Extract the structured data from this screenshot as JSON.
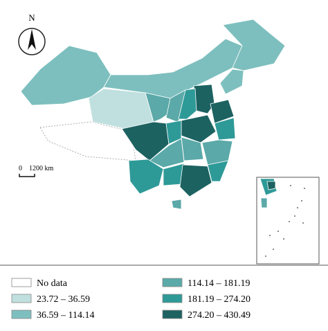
{
  "compass": {
    "label": "N"
  },
  "scale_bar": {
    "start": "0",
    "end": "1200 km"
  },
  "legend": {
    "items": [
      {
        "label": "No data",
        "color": "#ffffff"
      },
      {
        "label": "23.72 – 36.59",
        "color": "#c0e0df"
      },
      {
        "label": "36.59 – 114.14",
        "color": "#7dbfbe"
      },
      {
        "label": "114.14 – 181.19",
        "color": "#5ba9a8"
      },
      {
        "label": "181.19 – 274.20",
        "color": "#2e9a98"
      },
      {
        "label": "274.20 – 430.49",
        "color": "#1c6261"
      }
    ]
  }
}
